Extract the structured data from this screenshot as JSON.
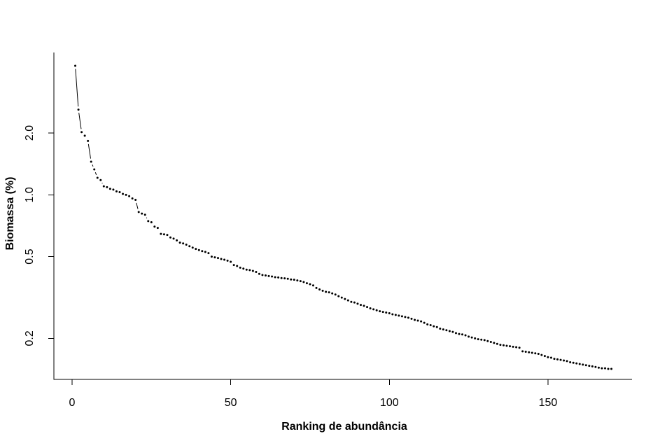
{
  "page": {
    "background": "#ffffff",
    "description": "Rank-abundance (Whittaker) plot, black points on white, L-shaped axes, log-scaled y axis"
  },
  "chart_data": {
    "type": "scatter",
    "subtype": "rank-abundance curve, points joined by gapped line segments (R type='b')",
    "title": "",
    "xlabel": "Ranking de abundância",
    "ylabel": "Biomassa (%)",
    "y_scale": "log10",
    "grid": false,
    "legend": null,
    "xlim": [
      -5.735,
      176.49
    ],
    "ylim": [
      0.1262,
      4.934
    ],
    "x_ticks": [
      {
        "value": 0,
        "label": "0"
      },
      {
        "value": 50,
        "label": "50"
      },
      {
        "value": 100,
        "label": "100"
      },
      {
        "value": 150,
        "label": "150"
      }
    ],
    "y_ticks": [
      {
        "value": 2.0,
        "label": "2.0"
      },
      {
        "value": 1.0,
        "label": "1.0"
      },
      {
        "value": 0.5,
        "label": "0.5"
      },
      {
        "value": 0.2,
        "label": "0.2"
      }
    ],
    "colors": {
      "points": "#000000",
      "segments": "#000000",
      "axis": "#000000",
      "text": "#000000",
      "background": "#ffffff"
    },
    "series": [
      {
        "name": "Biomassa (%)",
        "x_description": "ranking de abundância: 1 (espécie de maior biomassa) até 170",
        "x_from": 1,
        "values": [
          4.25,
          2.6,
          2.02,
          1.94,
          1.83,
          1.45,
          1.33,
          1.21,
          1.18,
          1.1,
          1.09,
          1.07,
          1.06,
          1.04,
          1.03,
          1.01,
          1.0,
          0.985,
          0.96,
          0.945,
          0.825,
          0.81,
          0.8,
          0.745,
          0.735,
          0.7,
          0.69,
          0.645,
          0.642,
          0.638,
          0.62,
          0.612,
          0.6,
          0.585,
          0.58,
          0.572,
          0.562,
          0.553,
          0.545,
          0.538,
          0.532,
          0.527,
          0.52,
          0.5,
          0.496,
          0.492,
          0.487,
          0.483,
          0.478,
          0.472,
          0.455,
          0.45,
          0.442,
          0.437,
          0.432,
          0.43,
          0.426,
          0.421,
          0.412,
          0.407,
          0.405,
          0.402,
          0.4,
          0.397,
          0.396,
          0.393,
          0.392,
          0.39,
          0.387,
          0.386,
          0.383,
          0.38,
          0.376,
          0.371,
          0.367,
          0.362,
          0.352,
          0.346,
          0.341,
          0.337,
          0.335,
          0.331,
          0.327,
          0.321,
          0.316,
          0.311,
          0.306,
          0.301,
          0.299,
          0.295,
          0.291,
          0.288,
          0.284,
          0.28,
          0.277,
          0.274,
          0.271,
          0.269,
          0.267,
          0.265,
          0.262,
          0.26,
          0.258,
          0.256,
          0.254,
          0.252,
          0.249,
          0.246,
          0.244,
          0.242,
          0.238,
          0.234,
          0.232,
          0.229,
          0.227,
          0.223,
          0.221,
          0.219,
          0.217,
          0.215,
          0.212,
          0.21,
          0.209,
          0.207,
          0.204,
          0.202,
          0.2,
          0.198,
          0.197,
          0.196,
          0.194,
          0.192,
          0.19,
          0.188,
          0.186,
          0.185,
          0.184,
          0.183,
          0.182,
          0.181,
          0.18,
          0.173,
          0.172,
          0.171,
          0.17,
          0.169,
          0.168,
          0.166,
          0.164,
          0.162,
          0.161,
          0.159,
          0.158,
          0.157,
          0.156,
          0.155,
          0.153,
          0.152,
          0.151,
          0.15,
          0.149,
          0.148,
          0.147,
          0.146,
          0.145,
          0.144,
          0.143,
          0.143,
          0.142,
          0.142
        ]
      }
    ]
  }
}
